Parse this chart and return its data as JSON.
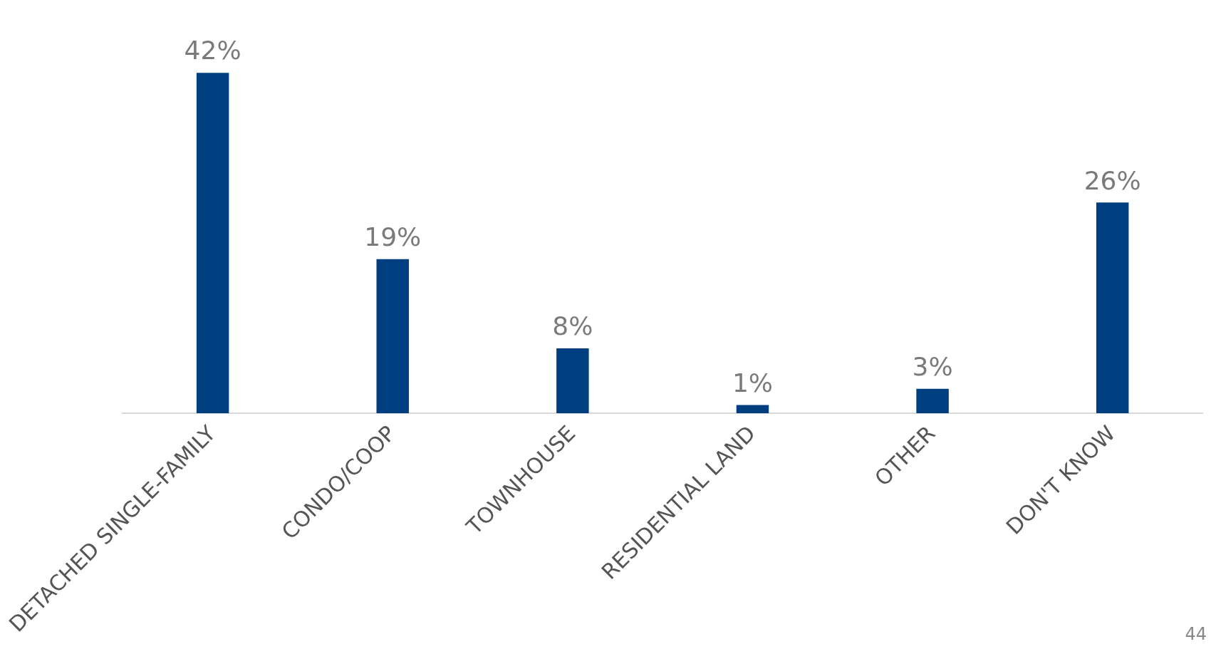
{
  "chart_data": {
    "type": "bar",
    "categories": [
      "DETACHED SINGLE-FAMILY",
      "CONDO/COOP",
      "TOWNHOUSE",
      "RESIDENTIAL LAND",
      "OTHER",
      "DON'T KNOW"
    ],
    "values": [
      42,
      19,
      8,
      1,
      3,
      26
    ],
    "value_labels": [
      "42%",
      "19%",
      "8%",
      "1%",
      "3%",
      "26%"
    ],
    "color": "#003f7f",
    "grid": false,
    "legend": false,
    "annotations": [
      "44"
    ]
  }
}
